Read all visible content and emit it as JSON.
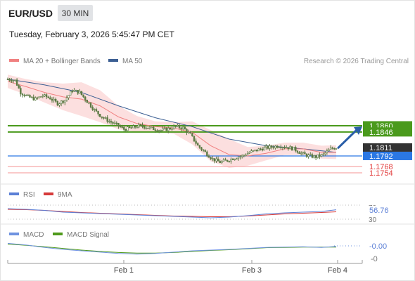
{
  "header": {
    "symbol": "EUR/USD",
    "timeframe": "30 MIN",
    "datetime": "Tuesday, February 3, 2026 5:45:47 PM CET"
  },
  "legend": {
    "ma20_bb": "MA 20 + Bollinger Bands",
    "ma50": "MA 50",
    "attribution": "Research © 2026 Trading Central"
  },
  "colors": {
    "candle": "#5c7a44",
    "ma20": "#f08080",
    "band_fill": "#fbd9d9",
    "ma50": "#3c5f93",
    "level_green": "#4a9a1c",
    "level_blue": "#2b78e4",
    "level_red": "#f7a9a9",
    "red_text": "#e23b3b",
    "arrow": "#2a5ea8",
    "rsi": "#5b7fd6",
    "rsi_ma": "#d63a3a",
    "macd": "#6f93e0",
    "macd_signal": "#4f9a1b",
    "current_bg": "#333333"
  },
  "chart_data": [
    {
      "type": "candlestick",
      "x_ticks": [
        "Feb 1",
        "Feb 3",
        "Feb 4"
      ],
      "ylim": [
        1.1735,
        1.1985
      ],
      "y_right_labels": [
        {
          "value": 1.186,
          "label": "1.1860",
          "style": "green"
        },
        {
          "value": 1.1846,
          "label": "1.1846",
          "style": "green"
        },
        {
          "value": 1.1811,
          "label": "1.1811",
          "style": "current"
        },
        {
          "value": 1.1792,
          "label": "1.1792",
          "style": "blue"
        },
        {
          "value": 1.1768,
          "label": "1.1768",
          "style": "red"
        },
        {
          "value": 1.1754,
          "label": "1.1754",
          "style": "red"
        }
      ],
      "levels": [
        {
          "value": 1.186,
          "style": "green"
        },
        {
          "value": 1.1846,
          "style": "green"
        },
        {
          "value": 1.1792,
          "style": "blue"
        },
        {
          "value": 1.1768,
          "style": "red"
        },
        {
          "value": 1.1754,
          "style": "red"
        }
      ],
      "close_path": [
        [
          0,
          1.1965
        ],
        [
          4,
          1.1962
        ],
        [
          7,
          1.1935
        ],
        [
          11,
          1.1925
        ],
        [
          15,
          1.192
        ],
        [
          19,
          1.1928
        ],
        [
          23,
          1.1922
        ],
        [
          27,
          1.191
        ],
        [
          31,
          1.1918
        ],
        [
          35,
          1.194
        ],
        [
          39,
          1.1935
        ],
        [
          43,
          1.1915
        ],
        [
          47,
          1.1895
        ],
        [
          51,
          1.188
        ],
        [
          55,
          1.187
        ],
        [
          59,
          1.1862
        ],
        [
          63,
          1.1852
        ],
        [
          67,
          1.1855
        ],
        [
          71,
          1.186
        ],
        [
          75,
          1.1857
        ],
        [
          79,
          1.1853
        ],
        [
          83,
          1.185
        ],
        [
          87,
          1.1853
        ],
        [
          91,
          1.1858
        ],
        [
          95,
          1.1855
        ],
        [
          99,
          1.184
        ],
        [
          103,
          1.1815
        ],
        [
          107,
          1.18
        ],
        [
          111,
          1.1785
        ],
        [
          115,
          1.1778
        ],
        [
          119,
          1.1782
        ],
        [
          123,
          1.1788
        ],
        [
          127,
          1.1792
        ],
        [
          131,
          1.18
        ],
        [
          135,
          1.1805
        ],
        [
          139,
          1.181
        ],
        [
          143,
          1.1812
        ],
        [
          147,
          1.1815
        ],
        [
          151,
          1.1812
        ],
        [
          155,
          1.1808
        ],
        [
          159,
          1.1798
        ],
        [
          163,
          1.1792
        ],
        [
          167,
          1.179
        ],
        [
          171,
          1.1795
        ],
        [
          175,
          1.1808
        ],
        [
          178,
          1.1811
        ]
      ],
      "ma20_path": [
        [
          0,
          1.196
        ],
        [
          10,
          1.1948
        ],
        [
          20,
          1.1935
        ],
        [
          30,
          1.1925
        ],
        [
          40,
          1.192
        ],
        [
          50,
          1.1905
        ],
        [
          60,
          1.188
        ],
        [
          70,
          1.1865
        ],
        [
          80,
          1.1858
        ],
        [
          90,
          1.1855
        ],
        [
          100,
          1.1845
        ],
        [
          110,
          1.1815
        ],
        [
          120,
          1.1795
        ],
        [
          130,
          1.1792
        ],
        [
          140,
          1.1798
        ],
        [
          150,
          1.1808
        ],
        [
          160,
          1.1808
        ],
        [
          170,
          1.18
        ],
        [
          178,
          1.18
        ]
      ],
      "band_upper": [
        [
          0,
          1.1975
        ],
        [
          10,
          1.1965
        ],
        [
          20,
          1.1958
        ],
        [
          30,
          1.1955
        ],
        [
          40,
          1.1958
        ],
        [
          50,
          1.194
        ],
        [
          60,
          1.1905
        ],
        [
          70,
          1.1882
        ],
        [
          80,
          1.187
        ],
        [
          90,
          1.1868
        ],
        [
          100,
          1.187
        ],
        [
          110,
          1.185
        ],
        [
          120,
          1.183
        ],
        [
          130,
          1.1812
        ],
        [
          140,
          1.1815
        ],
        [
          150,
          1.1822
        ],
        [
          160,
          1.1822
        ],
        [
          170,
          1.1815
        ],
        [
          178,
          1.1816
        ]
      ],
      "band_lower": [
        [
          0,
          1.1945
        ],
        [
          10,
          1.193
        ],
        [
          20,
          1.1912
        ],
        [
          30,
          1.1895
        ],
        [
          40,
          1.1882
        ],
        [
          50,
          1.1868
        ],
        [
          60,
          1.1852
        ],
        [
          70,
          1.1846
        ],
        [
          80,
          1.1845
        ],
        [
          90,
          1.1842
        ],
        [
          100,
          1.1818
        ],
        [
          110,
          1.178
        ],
        [
          120,
          1.1765
        ],
        [
          130,
          1.177
        ],
        [
          140,
          1.1782
        ],
        [
          150,
          1.1794
        ],
        [
          160,
          1.1794
        ],
        [
          170,
          1.1786
        ],
        [
          178,
          1.1785
        ]
      ],
      "ma50_path": [
        [
          0,
          1.1965
        ],
        [
          20,
          1.1952
        ],
        [
          40,
          1.1935
        ],
        [
          60,
          1.1905
        ],
        [
          80,
          1.1878
        ],
        [
          100,
          1.1858
        ],
        [
          120,
          1.183
        ],
        [
          140,
          1.1815
        ],
        [
          160,
          1.1808
        ],
        [
          178,
          1.18
        ]
      ],
      "projection": {
        "from": 1.1812,
        "to": 1.186
      }
    },
    {
      "type": "line",
      "name": "RSI",
      "legend": [
        "RSI",
        "9MA"
      ],
      "ylim": [
        30,
        70
      ],
      "y_labels": [
        "70",
        "30"
      ],
      "current_label": "56.76",
      "rsi_path": [
        [
          0,
          60
        ],
        [
          10,
          58
        ],
        [
          20,
          55
        ],
        [
          30,
          50
        ],
        [
          40,
          48
        ],
        [
          50,
          46
        ],
        [
          60,
          44
        ],
        [
          70,
          42
        ],
        [
          80,
          40
        ],
        [
          90,
          38
        ],
        [
          100,
          36
        ],
        [
          110,
          34
        ],
        [
          120,
          36
        ],
        [
          130,
          40
        ],
        [
          140,
          45
        ],
        [
          150,
          48
        ],
        [
          160,
          50
        ],
        [
          170,
          52
        ],
        [
          178,
          56.76
        ]
      ],
      "ma_path": [
        [
          0,
          58
        ],
        [
          10,
          57
        ],
        [
          20,
          55
        ],
        [
          30,
          52
        ],
        [
          40,
          49
        ],
        [
          50,
          47
        ],
        [
          60,
          45
        ],
        [
          70,
          43
        ],
        [
          80,
          41
        ],
        [
          90,
          39
        ],
        [
          100,
          38
        ],
        [
          110,
          37
        ],
        [
          120,
          37
        ],
        [
          130,
          39
        ],
        [
          140,
          42
        ],
        [
          150,
          45
        ],
        [
          160,
          47
        ],
        [
          170,
          49
        ],
        [
          178,
          51
        ]
      ]
    },
    {
      "type": "line",
      "name": "MACD",
      "legend": [
        "MACD",
        "MACD Signal"
      ],
      "ylim": [
        -0.0035,
        0.0015
      ],
      "y_labels": [
        "-0.00",
        "-0"
      ],
      "current_label": "-0.00",
      "macd_path": [
        [
          0,
          0.001
        ],
        [
          10,
          0.0005
        ],
        [
          20,
          -0.0002
        ],
        [
          30,
          -0.0008
        ],
        [
          40,
          -0.0012
        ],
        [
          50,
          -0.0016
        ],
        [
          60,
          -0.002
        ],
        [
          70,
          -0.0022
        ],
        [
          80,
          -0.002
        ],
        [
          90,
          -0.0016
        ],
        [
          100,
          -0.0012
        ],
        [
          110,
          -0.001
        ],
        [
          120,
          -0.0008
        ],
        [
          130,
          -0.0005
        ],
        [
          140,
          -0.0002
        ],
        [
          150,
          -0.0001
        ],
        [
          160,
          0.0
        ],
        [
          170,
          -0.0002
        ],
        [
          178,
          0.0001
        ]
      ],
      "signal_path": [
        [
          0,
          0.0008
        ],
        [
          10,
          0.0004
        ],
        [
          20,
          0.0
        ],
        [
          30,
          -0.0005
        ],
        [
          40,
          -0.001
        ],
        [
          50,
          -0.0014
        ],
        [
          60,
          -0.0017
        ],
        [
          70,
          -0.0019
        ],
        [
          80,
          -0.0019
        ],
        [
          90,
          -0.0017
        ],
        [
          100,
          -0.0014
        ],
        [
          110,
          -0.0011
        ],
        [
          120,
          -0.0009
        ],
        [
          130,
          -0.0006
        ],
        [
          140,
          -0.0003
        ],
        [
          150,
          -0.0002
        ],
        [
          160,
          -0.0001
        ],
        [
          170,
          -0.0001
        ],
        [
          178,
          -0.0001
        ]
      ]
    }
  ]
}
